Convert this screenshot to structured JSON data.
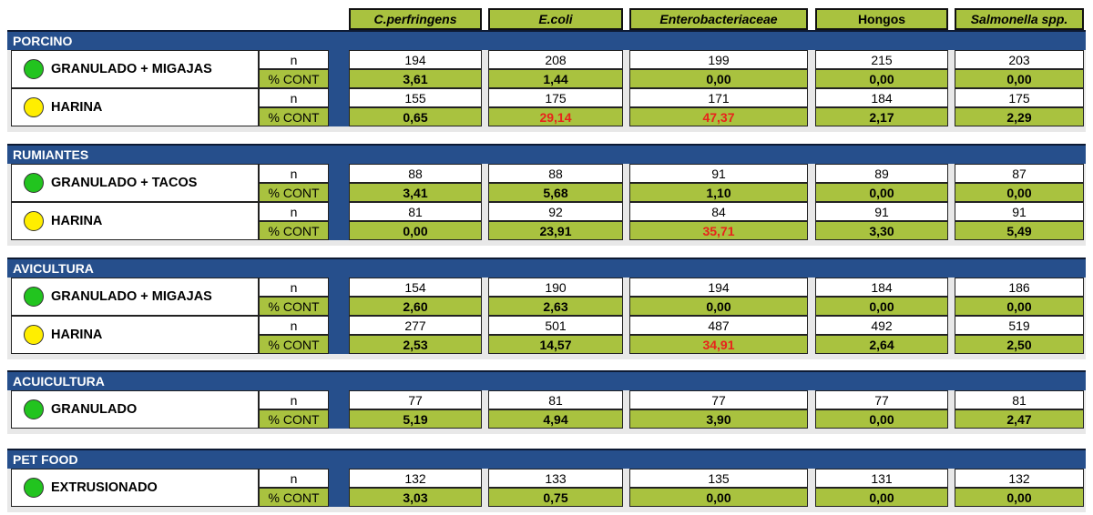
{
  "chart_data": {
    "type": "table",
    "columns": [
      {
        "label": "C.perfringens",
        "italic": true
      },
      {
        "label": "E.coli",
        "italic": true
      },
      {
        "label": "Enterobacteriaceae",
        "italic": true
      },
      {
        "label": "Hongos",
        "italic": false
      },
      {
        "label": "Salmonella spp.",
        "italic": true
      }
    ],
    "metric_labels": {
      "n": "n",
      "pct": "% CONT"
    },
    "highlight_color": "#e8231c",
    "status_colors": {
      "green": "#22c41f",
      "yellow": "#ffee00"
    },
    "sections": [
      {
        "name": "PORCINO",
        "rows": [
          {
            "label": "GRANULADO + MIGAJAS",
            "status": "green",
            "n": [
              "194",
              "208",
              "199",
              "215",
              "203"
            ],
            "pct": [
              "3,61",
              "1,44",
              "0,00",
              "0,00",
              "0,00"
            ],
            "pct_highlight": [
              false,
              false,
              false,
              false,
              false
            ]
          },
          {
            "label": "HARINA",
            "status": "yellow",
            "n": [
              "155",
              "175",
              "171",
              "184",
              "175"
            ],
            "pct": [
              "0,65",
              "29,14",
              "47,37",
              "2,17",
              "2,29"
            ],
            "pct_highlight": [
              false,
              true,
              true,
              false,
              false
            ]
          }
        ]
      },
      {
        "name": "RUMIANTES",
        "rows": [
          {
            "label": "GRANULADO + TACOS",
            "status": "green",
            "n": [
              "88",
              "88",
              "91",
              "89",
              "87"
            ],
            "pct": [
              "3,41",
              "5,68",
              "1,10",
              "0,00",
              "0,00"
            ],
            "pct_highlight": [
              false,
              false,
              false,
              false,
              false
            ]
          },
          {
            "label": "HARINA",
            "status": "yellow",
            "n": [
              "81",
              "92",
              "84",
              "91",
              "91"
            ],
            "pct": [
              "0,00",
              "23,91",
              "35,71",
              "3,30",
              "5,49"
            ],
            "pct_highlight": [
              false,
              false,
              true,
              false,
              false
            ]
          }
        ]
      },
      {
        "name": "AVICULTURA",
        "rows": [
          {
            "label": "GRANULADO + MIGAJAS",
            "status": "green",
            "n": [
              "154",
              "190",
              "194",
              "184",
              "186"
            ],
            "pct": [
              "2,60",
              "2,63",
              "0,00",
              "0,00",
              "0,00"
            ],
            "pct_highlight": [
              false,
              false,
              false,
              false,
              false
            ]
          },
          {
            "label": "HARINA",
            "status": "yellow",
            "n": [
              "277",
              "501",
              "487",
              "492",
              "519"
            ],
            "pct": [
              "2,53",
              "14,57",
              "34,91",
              "2,64",
              "2,50"
            ],
            "pct_highlight": [
              false,
              false,
              true,
              false,
              false
            ]
          }
        ]
      },
      {
        "name": "ACUICULTURA",
        "rows": [
          {
            "label": "GRANULADO",
            "status": "green",
            "n": [
              "77",
              "81",
              "77",
              "77",
              "81"
            ],
            "pct": [
              "5,19",
              "4,94",
              "3,90",
              "0,00",
              "2,47"
            ],
            "pct_highlight": [
              false,
              false,
              false,
              false,
              false
            ]
          }
        ]
      },
      {
        "name": "PET FOOD",
        "rows": [
          {
            "label": "EXTRUSIONADO",
            "status": "green",
            "n": [
              "132",
              "133",
              "135",
              "131",
              "132"
            ],
            "pct": [
              "3,03",
              "0,75",
              "0,00",
              "0,00",
              "0,00"
            ],
            "pct_highlight": [
              false,
              false,
              false,
              false,
              false
            ]
          }
        ]
      }
    ]
  }
}
